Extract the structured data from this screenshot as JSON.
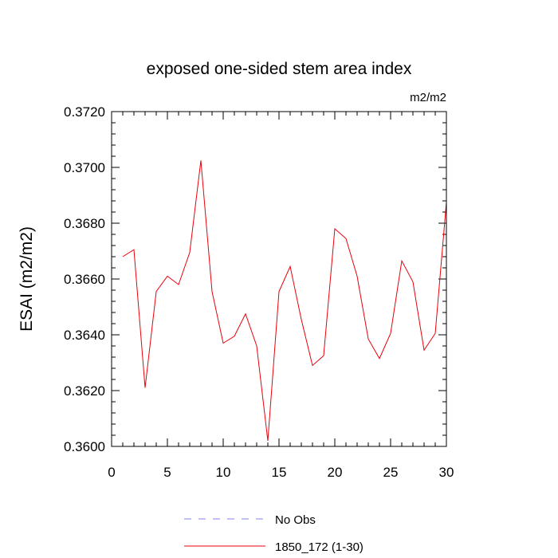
{
  "chart_data": {
    "type": "line",
    "title": "exposed one-sided stem area index",
    "units_label": "m2/m2",
    "ylabel": "ESAI  (m2/m2)",
    "xlabel": "",
    "xlim": [
      0,
      30
    ],
    "ylim": [
      0.36,
      0.372
    ],
    "x_ticks": [
      "0",
      "5",
      "10",
      "15",
      "20",
      "25",
      "30"
    ],
    "y_ticks": [
      "0.3600",
      "0.3620",
      "0.3640",
      "0.3660",
      "0.3680",
      "0.3700",
      "0.3720"
    ],
    "grid": false,
    "legend_position": "bottom",
    "series": [
      {
        "name": "1850_172 (1-30)",
        "color": "#e8000b",
        "dash": "solid",
        "x": [
          1,
          2,
          3,
          4,
          5,
          6,
          7,
          8,
          9,
          10,
          11,
          12,
          13,
          14,
          15,
          16,
          17,
          18,
          19,
          20,
          21,
          22,
          23,
          24,
          25,
          26,
          27,
          28,
          29,
          30
        ],
        "values": [
          0.3668,
          0.36705,
          0.3621,
          0.36555,
          0.3661,
          0.3658,
          0.36695,
          0.37025,
          0.36555,
          0.3637,
          0.36395,
          0.36475,
          0.3636,
          0.3602,
          0.36555,
          0.36645,
          0.36455,
          0.3629,
          0.36325,
          0.3678,
          0.36745,
          0.3661,
          0.36385,
          0.36315,
          0.36405,
          0.36665,
          0.3659,
          0.36345,
          0.36405,
          0.36875
        ]
      }
    ],
    "legend": [
      {
        "label": "No Obs",
        "color": "#8080ff",
        "dash": "dashed"
      },
      {
        "label": "1850_172 (1-30)",
        "color": "#e8000b",
        "dash": "solid"
      }
    ]
  }
}
